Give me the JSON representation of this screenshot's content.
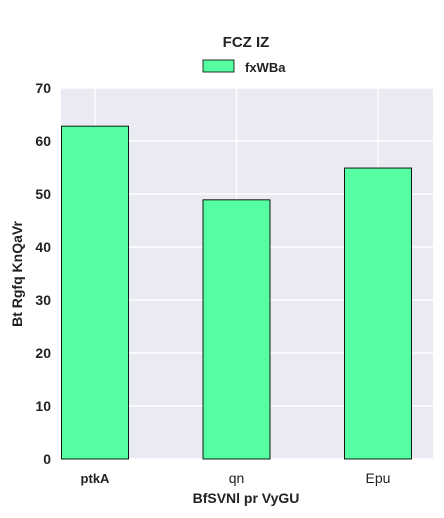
{
  "chart_data": {
    "type": "bar",
    "title": "FCZ IZ",
    "xlabel": "BfSVNl pr VyGU",
    "ylabel": "Bt Rgfq KnQaVr",
    "categories": [
      "ptkA",
      "qn",
      "Epu"
    ],
    "series": [
      {
        "name": "fxWBa",
        "values": [
          62.8,
          48.9,
          54.9
        ],
        "color": "#55ffa1"
      }
    ],
    "ylim": [
      0,
      70
    ],
    "yticks": [
      0,
      10,
      20,
      30,
      40,
      50,
      60,
      70
    ],
    "grid": true,
    "legend_position": "top-center",
    "background_color": "#eaeaf2",
    "grid_color": "#ffffff"
  }
}
